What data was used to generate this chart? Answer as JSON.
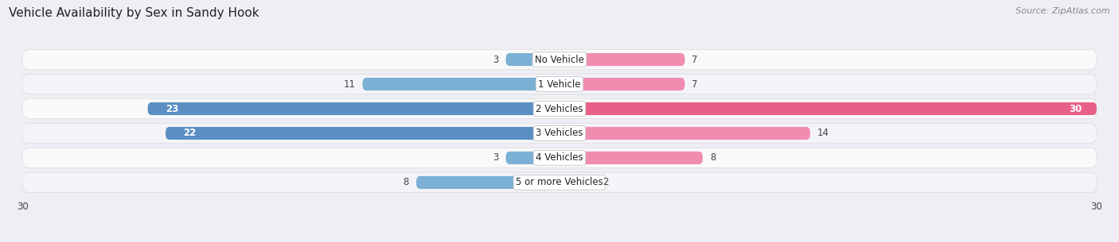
{
  "title": "Vehicle Availability by Sex in Sandy Hook",
  "source": "Source: ZipAtlas.com",
  "categories": [
    "No Vehicle",
    "1 Vehicle",
    "2 Vehicles",
    "3 Vehicles",
    "4 Vehicles",
    "5 or more Vehicles"
  ],
  "male_values": [
    3,
    11,
    23,
    22,
    3,
    8
  ],
  "female_values": [
    7,
    7,
    30,
    14,
    8,
    2
  ],
  "male_color": "#7bafd4",
  "female_color": "#f08cb0",
  "male_color_strong": "#5b8fc4",
  "female_color_strong": "#e8608a",
  "bg_color": "#eeeef4",
  "row_bg_even": "#f4f4f8",
  "row_bg_odd": "#fafafa",
  "axis_max": 30,
  "bar_height": 0.52,
  "title_fontsize": 11,
  "label_fontsize": 8.5,
  "value_fontsize": 8.5,
  "tick_fontsize": 8.5,
  "source_fontsize": 8
}
